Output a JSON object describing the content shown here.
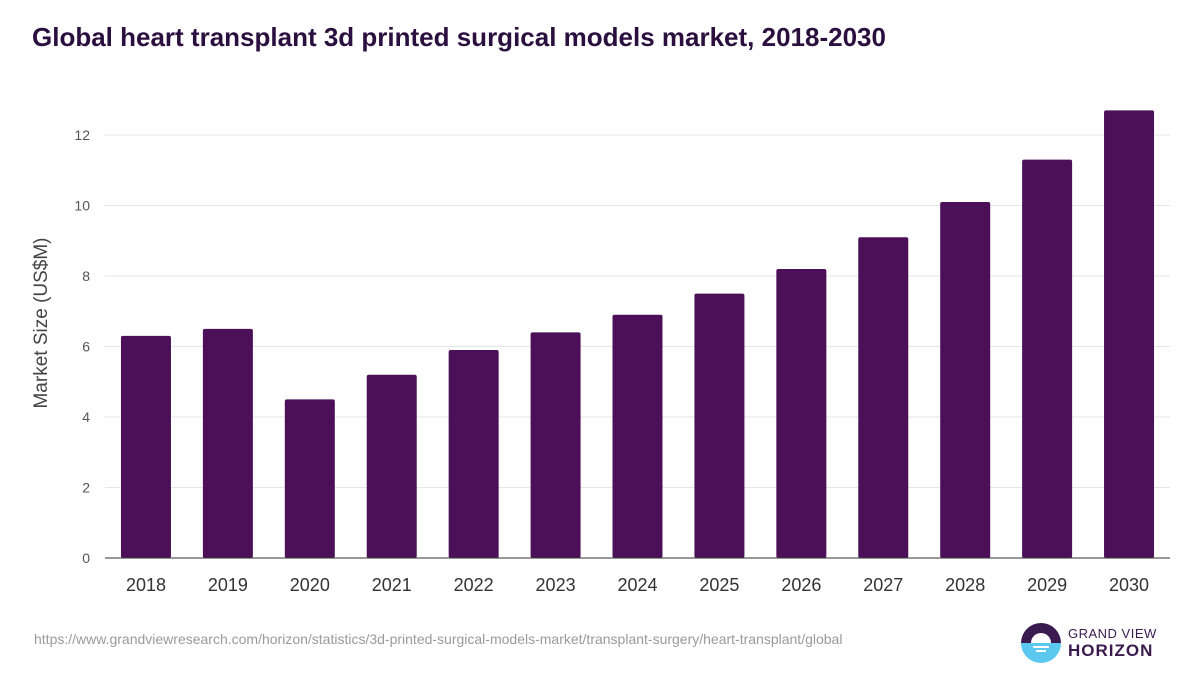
{
  "chart_data": {
    "type": "bar",
    "title": "Global heart transplant 3d printed surgical models market, 2018-2030",
    "xlabel": "",
    "ylabel": "Market Size (US$M)",
    "categories": [
      "2018",
      "2019",
      "2020",
      "2021",
      "2022",
      "2023",
      "2024",
      "2025",
      "2026",
      "2027",
      "2028",
      "2029",
      "2030"
    ],
    "values": [
      6.3,
      6.5,
      4.5,
      5.2,
      5.9,
      6.4,
      6.9,
      7.5,
      8.2,
      9.1,
      10.1,
      11.3,
      12.7
    ],
    "ylim": [
      0,
      12.8
    ],
    "yticks": [
      "0",
      "2",
      "4",
      "6",
      "8",
      "10",
      "12"
    ],
    "grid": true,
    "bar_color": "#4b1058"
  },
  "source": "https://www.grandviewresearch.com/horizon/statistics/3d-printed-surgical-models-market/transplant-surgery/heart-transplant/global",
  "logo": {
    "line1": "GRAND VIEW",
    "line2": "HORIZON"
  }
}
